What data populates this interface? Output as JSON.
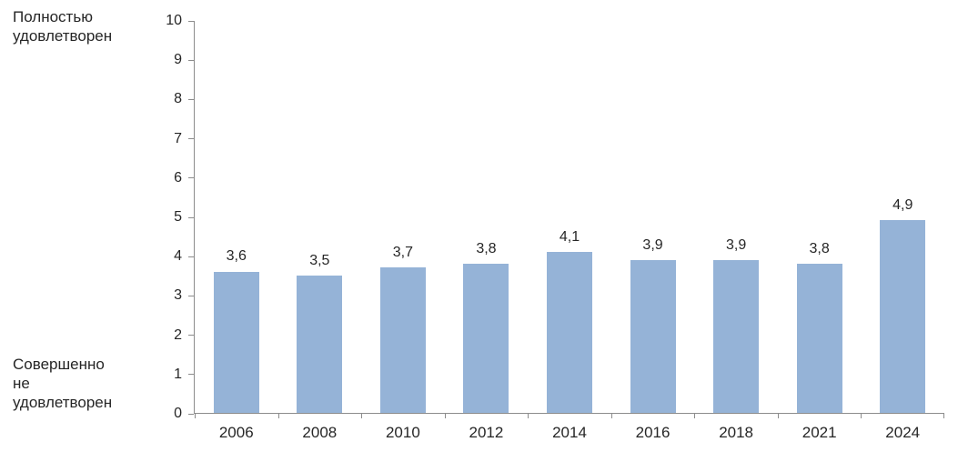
{
  "chart_data": {
    "type": "bar",
    "title": "",
    "categories": [
      "2006",
      "2008",
      "2010",
      "2012",
      "2014",
      "2016",
      "2018",
      "2021",
      "2024"
    ],
    "values": [
      3.6,
      3.5,
      3.7,
      3.8,
      4.1,
      3.9,
      3.9,
      3.8,
      4.9
    ],
    "value_labels": [
      "3,6",
      "3,5",
      "3,7",
      "3,8",
      "4,1",
      "3,9",
      "3,9",
      "3,8",
      "4,9"
    ],
    "xlabel": "",
    "ylabel": "",
    "ylim": [
      0,
      10
    ],
    "y_ticks": [
      0,
      1,
      2,
      3,
      4,
      5,
      6,
      7,
      8,
      9,
      10
    ],
    "y_axis_top_caption": "Полностью удовлетворен",
    "y_axis_bottom_caption": "Совершенно не удовлетворен",
    "grid": false,
    "legend_position": "none",
    "bar_color": "#95B3D7",
    "axis_color": "#8C8C8C",
    "text_color": "#262626"
  },
  "labels": {
    "top_caption_lines": {
      "0": "Полностью",
      "1": "удовлетворен"
    },
    "bottom_caption_lines": {
      "0": "Совершенно",
      "1": "не",
      "2": "удовлетворен"
    }
  }
}
